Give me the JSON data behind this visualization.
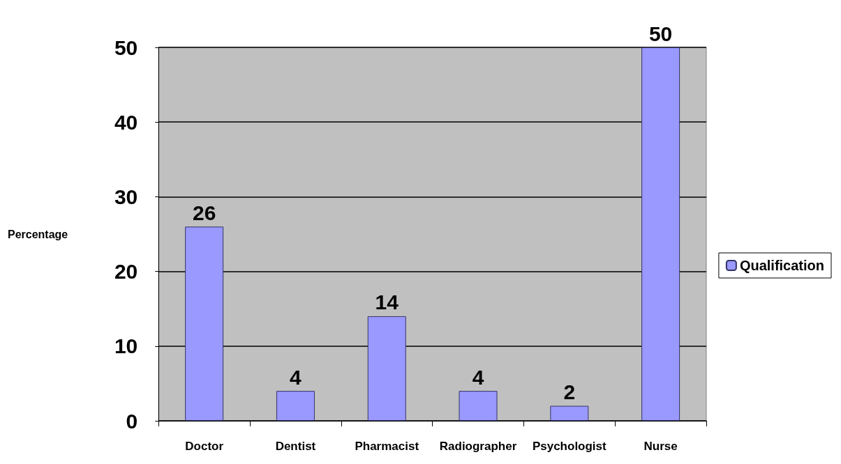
{
  "chart_data": {
    "type": "bar",
    "ylabel": "Percentage",
    "categories": [
      "Doctor",
      "Dentist",
      "Pharmacist",
      "Radiographer",
      "Psychologist",
      "Nurse"
    ],
    "series": [
      {
        "name": "Qualification",
        "color": "#9999ff",
        "values": [
          26,
          4,
          14,
          4,
          2,
          50
        ]
      }
    ],
    "ylim": [
      0,
      50
    ],
    "yticks": [
      0,
      10,
      20,
      30,
      40,
      50
    ],
    "grid": "y",
    "legend": "right",
    "data_labels": true
  }
}
